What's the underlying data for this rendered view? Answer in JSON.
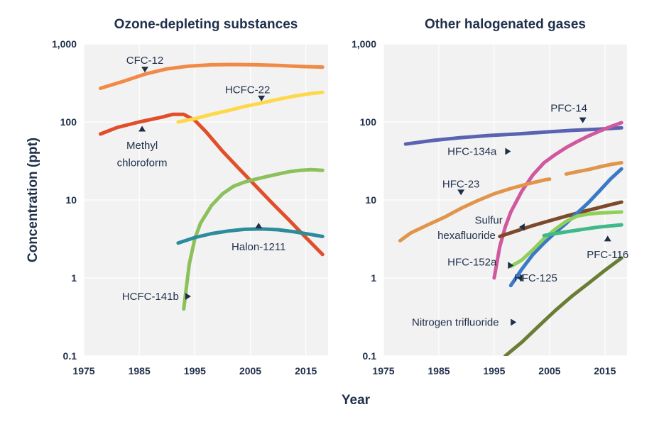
{
  "figure": {
    "ylabel": "Concentration (ppt)",
    "xlabel": "Year"
  },
  "chart_data": [
    {
      "type": "line",
      "title": "Ozone-depleting substances",
      "xlim": [
        1975,
        2019
      ],
      "ylim": [
        0.1,
        1000
      ],
      "yscale": "log",
      "x_ticks": [
        "1975",
        "1985",
        "1995",
        "2005",
        "2015"
      ],
      "y_ticks": [
        "0.1",
        "1",
        "10",
        "100",
        "1,000"
      ],
      "grid": true,
      "legend": "none (inline labels)",
      "series": [
        {
          "name": "CFC-12",
          "color": "#f08a46",
          "x": [
            1978,
            1982,
            1986,
            1990,
            1994,
            1998,
            2002,
            2006,
            2010,
            2014,
            2018
          ],
          "y": [
            270,
            330,
            410,
            480,
            520,
            540,
            545,
            540,
            530,
            515,
            505
          ]
        },
        {
          "name": "Methyl chloroform",
          "color": "#e04e2a",
          "x": [
            1978,
            1981,
            1985,
            1989,
            1991,
            1993,
            1995,
            1997,
            2000,
            2003,
            2006,
            2009,
            2012,
            2015,
            2018
          ],
          "y": [
            70,
            85,
            100,
            115,
            125,
            125,
            105,
            75,
            42,
            25,
            15,
            9,
            5.5,
            3.3,
            2
          ]
        },
        {
          "name": "HCFC-22",
          "color": "#fdd94a",
          "x": [
            1992,
            1995,
            1998,
            2001,
            2004,
            2007,
            2010,
            2013,
            2016,
            2018
          ],
          "y": [
            100,
            110,
            125,
            140,
            158,
            175,
            195,
            215,
            232,
            240
          ]
        },
        {
          "name": "HCFC-141b",
          "color": "#8cc05a",
          "x": [
            1993,
            1994,
            1995,
            1996,
            1998,
            2000,
            2002,
            2004,
            2006,
            2008,
            2010,
            2012,
            2014,
            2016,
            2018
          ],
          "y": [
            0.4,
            1.5,
            3.2,
            5,
            8.5,
            12,
            15,
            17,
            18.5,
            20,
            21.5,
            23,
            24,
            24.5,
            24
          ]
        },
        {
          "name": "Halon-1211",
          "color": "#2c8c9c",
          "x": [
            1992,
            1995,
            1998,
            2001,
            2004,
            2007,
            2010,
            2013,
            2016,
            2018
          ],
          "y": [
            2.8,
            3.3,
            3.7,
            4,
            4.2,
            4.25,
            4.15,
            3.9,
            3.6,
            3.4
          ]
        }
      ],
      "labels": [
        {
          "text": "CFC-12",
          "x": 1986,
          "y": 620
        },
        {
          "text": "HCFC-22",
          "x": 2004.5,
          "y": 260
        },
        {
          "text": "Methyl",
          "x": 1985.5,
          "y": 50
        },
        {
          "text": "chloroform",
          "x": 1985.5,
          "y": 30
        },
        {
          "text": "Halon-1211",
          "x": 2006.5,
          "y": 2.5
        },
        {
          "text": "HCFC-141b",
          "x": 1987,
          "y": 0.58
        }
      ]
    },
    {
      "type": "line",
      "title": "Other halogenated gases",
      "xlim": [
        1975,
        2019
      ],
      "ylim": [
        0.1,
        1000
      ],
      "yscale": "log",
      "x_ticks": [
        "1975",
        "1985",
        "1995",
        "2005",
        "2015"
      ],
      "y_ticks": [
        "0.1",
        "1",
        "10",
        "100",
        "1,000"
      ],
      "grid": true,
      "legend": "none (inline labels)",
      "series": [
        {
          "name": "PFC-14",
          "color": "#5a62b2",
          "x": [
            1979,
            1984,
            1989,
            1994,
            1999,
            2004,
            2009,
            2014,
            2018
          ],
          "y": [
            52,
            58,
            63,
            67,
            70,
            74,
            78,
            81,
            84
          ]
        },
        {
          "name": "HFC-134a",
          "color": "#d0589e",
          "x": [
            1995,
            1996,
            1997,
            1998,
            2000,
            2002,
            2004,
            2006,
            2008,
            2010,
            2012,
            2014,
            2016,
            2018
          ],
          "y": [
            1,
            2.5,
            4.5,
            7,
            13,
            21,
            30,
            38,
            47,
            56,
            66,
            76,
            87,
            98
          ]
        },
        {
          "name": "HFC-23",
          "color": "#e0954a",
          "x": [
            1978,
            1980,
            1983,
            1986,
            1989,
            1992,
            1995,
            1998,
            2001,
            2004,
            2005
          ],
          "y": [
            3,
            3.8,
            4.8,
            6,
            7.8,
            9.8,
            12,
            14,
            16,
            18,
            18.5
          ]
        },
        {
          "name": "HFC-23 (recent)",
          "color": "#e0954a",
          "x": [
            2008,
            2010,
            2012,
            2014,
            2016,
            2018
          ],
          "y": [
            21.5,
            23,
            24.5,
            26.5,
            28.5,
            30
          ]
        },
        {
          "name": "Sulfur hexafluoride",
          "color": "#7a4a2a",
          "x": [
            1996,
            1999,
            2002,
            2005,
            2008,
            2011,
            2014,
            2016,
            2018
          ],
          "y": [
            3.4,
            4,
            4.7,
            5.4,
            6.2,
            7.1,
            8,
            8.7,
            9.4
          ]
        },
        {
          "name": "HFC-125",
          "color": "#3a78c8",
          "x": [
            1998,
            2000,
            2002,
            2004,
            2006,
            2008,
            2010,
            2012,
            2014,
            2016,
            2018
          ],
          "y": [
            0.8,
            1.3,
            2,
            2.8,
            3.8,
            5,
            6.8,
            9.2,
            13,
            18.5,
            25
          ]
        },
        {
          "name": "HFC-152a",
          "color": "#8fcf5a",
          "x": [
            1998,
            2000,
            2002,
            2004,
            2006,
            2008,
            2010,
            2012,
            2014,
            2016,
            2018
          ],
          "y": [
            1.4,
            1.7,
            2.3,
            3.2,
            4.2,
            5.3,
            6.2,
            6.6,
            6.8,
            6.9,
            7
          ]
        },
        {
          "name": "PFC-116",
          "color": "#3fb88a",
          "x": [
            2004,
            2006,
            2008,
            2010,
            2012,
            2014,
            2016,
            2018
          ],
          "y": [
            3.5,
            3.7,
            3.9,
            4.1,
            4.3,
            4.5,
            4.65,
            4.8
          ]
        },
        {
          "name": "Nitrogen trifluoride",
          "color": "#6a7d35",
          "x": [
            1997,
            2000,
            2003,
            2006,
            2009,
            2012,
            2015,
            2018
          ],
          "y": [
            0.1,
            0.15,
            0.24,
            0.38,
            0.58,
            0.85,
            1.25,
            1.8
          ]
        }
      ],
      "labels": [
        {
          "text": "PFC-14",
          "x": 2008.5,
          "y": 150
        },
        {
          "text": "HFC-134a",
          "x": 1991,
          "y": 42
        },
        {
          "text": "HFC-23",
          "x": 1989,
          "y": 16
        },
        {
          "text": "Sulfur",
          "x": 1994,
          "y": 5.5
        },
        {
          "text": "hexafluoride",
          "x": 1990,
          "y": 3.5
        },
        {
          "text": "PFC-116",
          "x": 2015.5,
          "y": 2.0
        },
        {
          "text": "HFC-152a",
          "x": 1991,
          "y": 1.6
        },
        {
          "text": "HFC-125",
          "x": 2002.5,
          "y": 1.0
        },
        {
          "text": "Nitrogen trifluoride",
          "x": 1988,
          "y": 0.27
        }
      ]
    }
  ]
}
